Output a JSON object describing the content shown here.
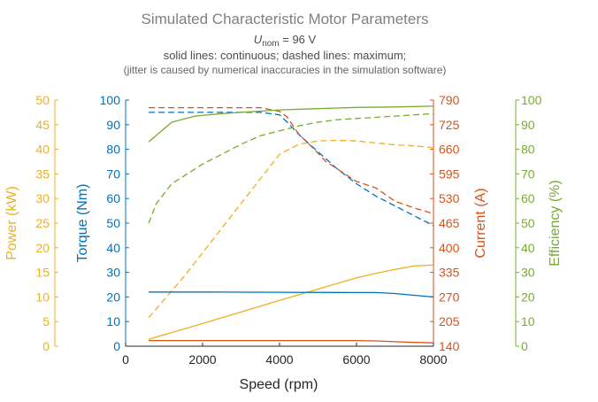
{
  "chart_data": {
    "type": "line",
    "title": "Simulated Characteristic Motor Parameters",
    "subtitle": {
      "symbol": "U",
      "subscript": "nom",
      "rest": " = 96 V"
    },
    "notes": [
      "solid lines: continuous; dashed lines: maximum;",
      "(jitter is caused by numerical inaccuracies in the simulation software)"
    ],
    "xlabel": "Speed (rpm)",
    "xlim": [
      0,
      8000
    ],
    "xticks": [
      0,
      2000,
      4000,
      6000,
      8000
    ],
    "grid": false,
    "colors": {
      "power": "#EDB120",
      "torque": "#0072BD",
      "current": "#D95319",
      "efficiency": "#77AC30",
      "title": "#808080",
      "axis_dark": "#262626"
    },
    "axes": {
      "power": {
        "label": "Power (kW)",
        "lim": [
          0,
          50
        ],
        "ticks": [
          0,
          5,
          10,
          15,
          20,
          25,
          30,
          35,
          40,
          45,
          50
        ]
      },
      "torque": {
        "label": "Torque (Nm)",
        "lim": [
          0,
          100
        ],
        "ticks": [
          0,
          10,
          20,
          30,
          40,
          50,
          60,
          70,
          80,
          90,
          100
        ]
      },
      "current": {
        "label": "Current (A)",
        "lim": [
          140,
          790
        ],
        "ticks": [
          140,
          205,
          270,
          335,
          400,
          465,
          530,
          595,
          660,
          725,
          790
        ]
      },
      "efficiency": {
        "label": "Efficiency (%)",
        "lim": [
          0,
          100
        ],
        "ticks": [
          0,
          10,
          20,
          30,
          40,
          50,
          60,
          70,
          80,
          90,
          100
        ]
      }
    },
    "series": [
      {
        "axis": "power",
        "style": "dashed",
        "x": [
          600,
          1500,
          2500,
          3500,
          4000,
          4500,
          5000,
          5500,
          6000,
          6500,
          7000,
          7500,
          8000
        ],
        "y": [
          5.8,
          14,
          24,
          34,
          39,
          41,
          41.7,
          41.8,
          41.7,
          41.3,
          40.9,
          40.7,
          40.3
        ]
      },
      {
        "axis": "power",
        "style": "solid",
        "x": [
          600,
          2000,
          4000,
          5000,
          6000,
          6500,
          7000,
          7500,
          8000
        ],
        "y": [
          1.4,
          4.6,
          9.3,
          11.6,
          13.9,
          14.8,
          15.6,
          16.3,
          16.5
        ]
      },
      {
        "axis": "torque",
        "style": "dashed",
        "x": [
          600,
          1000,
          2000,
          3000,
          3500,
          4000,
          4200,
          4500,
          5000,
          5500,
          6000,
          6500,
          7000,
          7500,
          8000
        ],
        "y": [
          95,
          95,
          95,
          95,
          95,
          94,
          91,
          86,
          79,
          72,
          66,
          61,
          57,
          53,
          49
        ]
      },
      {
        "axis": "torque",
        "style": "solid",
        "x": [
          600,
          2000,
          4000,
          6000,
          6500,
          7000,
          7500,
          8000
        ],
        "y": [
          22,
          22,
          21.9,
          21.8,
          21.8,
          21.4,
          20.7,
          20
        ]
      },
      {
        "axis": "current",
        "style": "dashed",
        "x": [
          600,
          1000,
          2000,
          3000,
          3500,
          4000,
          4200,
          4500,
          5000,
          5200,
          5500,
          6000,
          6500,
          7000,
          7500,
          8000
        ],
        "y": [
          770,
          770,
          770,
          770,
          770,
          760,
          745,
          700,
          650,
          628,
          608,
          575,
          558,
          523,
          505,
          490
        ]
      },
      {
        "axis": "current",
        "style": "solid",
        "x": [
          600,
          2000,
          4000,
          6000,
          6500,
          7000,
          7500,
          8000
        ],
        "y": [
          155,
          155,
          155,
          155,
          154,
          152,
          150,
          149
        ]
      },
      {
        "axis": "efficiency",
        "style": "dashed",
        "x": [
          600,
          800,
          1200,
          1500,
          2000,
          2500,
          3000,
          3500,
          4000,
          4500,
          5000,
          5500,
          6000,
          6500,
          7000,
          7500,
          8000
        ],
        "y": [
          50,
          58,
          66,
          69,
          74,
          78,
          82,
          85.5,
          87.5,
          89.5,
          91,
          92,
          92.5,
          93,
          93.5,
          94,
          94.5
        ]
      },
      {
        "axis": "efficiency",
        "style": "solid",
        "x": [
          600,
          1200,
          1800,
          2500,
          3000,
          4000,
          5000,
          6000,
          7000,
          8000
        ],
        "y": [
          83,
          91,
          93.5,
          94.5,
          95,
          96,
          96.5,
          97,
          97.2,
          97.5
        ]
      }
    ]
  }
}
